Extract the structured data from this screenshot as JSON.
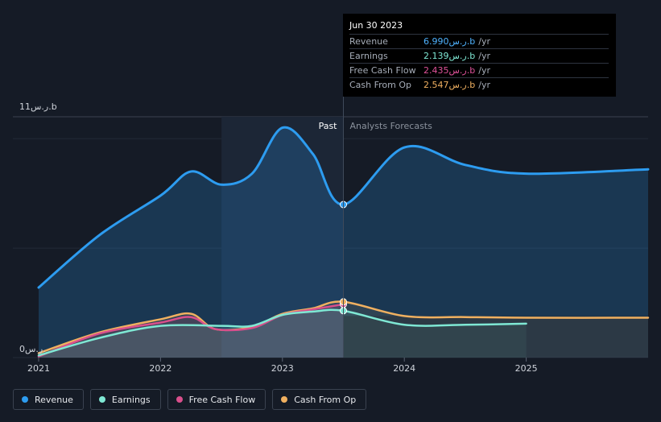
{
  "tooltip": {
    "date": "Jun 30 2023",
    "rows": [
      {
        "label": "Revenue",
        "value": "6.990ر.س.b",
        "unit": "/yr",
        "color": "#4fb3ff"
      },
      {
        "label": "Earnings",
        "value": "2.139ر.س.b",
        "unit": "/yr",
        "color": "#7fe8d4"
      },
      {
        "label": "Free Cash Flow",
        "value": "2.435ر.س.b",
        "unit": "/yr",
        "color": "#e0529a"
      },
      {
        "label": "Cash From Op",
        "value": "2.547ر.س.b",
        "unit": "/yr",
        "color": "#f0b060"
      }
    ]
  },
  "legend": [
    {
      "label": "Revenue",
      "color": "#2d9cf0"
    },
    {
      "label": "Earnings",
      "color": "#7fe8d4"
    },
    {
      "label": "Free Cash Flow",
      "color": "#d94f8c"
    },
    {
      "label": "Cash From Op",
      "color": "#f0b060"
    }
  ],
  "chart_data": {
    "type": "area",
    "y_top_label": "11ر.س.b",
    "y_bottom_label": "0ر.س.",
    "past_label": "Past",
    "forecast_label": "Analysts Forecasts",
    "ylim": [
      0,
      11
    ],
    "xlim": [
      2021,
      2026
    ],
    "x_ticks": [
      {
        "value": 2021,
        "label": "2021"
      },
      {
        "value": 2022,
        "label": "2022"
      },
      {
        "value": 2023,
        "label": "2023"
      },
      {
        "value": 2024,
        "label": "2024"
      },
      {
        "value": 2025,
        "label": "2025"
      }
    ],
    "split_x": 2023.5,
    "highlight_start_x": 2022.5,
    "series": [
      {
        "name": "Revenue",
        "color": "#2d9cf0",
        "points": [
          [
            2021.0,
            3.2
          ],
          [
            2021.5,
            5.6
          ],
          [
            2022.0,
            7.4
          ],
          [
            2022.25,
            8.5
          ],
          [
            2022.5,
            7.9
          ],
          [
            2022.75,
            8.4
          ],
          [
            2023.0,
            10.5
          ],
          [
            2023.25,
            9.3
          ],
          [
            2023.5,
            6.99
          ],
          [
            2024.0,
            9.6
          ],
          [
            2024.5,
            8.8
          ],
          [
            2025.0,
            8.4
          ],
          [
            2026.0,
            8.6
          ]
        ]
      },
      {
        "name": "Earnings",
        "color": "#7fe8d4",
        "points": [
          [
            2021.0,
            0.1
          ],
          [
            2021.5,
            0.9
          ],
          [
            2022.0,
            1.45
          ],
          [
            2022.5,
            1.45
          ],
          [
            2022.75,
            1.45
          ],
          [
            2023.0,
            1.95
          ],
          [
            2023.25,
            2.1
          ],
          [
            2023.5,
            2.139
          ],
          [
            2024.0,
            1.5
          ],
          [
            2024.5,
            1.5
          ],
          [
            2025.0,
            1.55
          ]
        ]
      },
      {
        "name": "Free Cash Flow",
        "color": "#d94f8c",
        "points": [
          [
            2021.0,
            0.05
          ],
          [
            2021.5,
            1.1
          ],
          [
            2022.0,
            1.6
          ],
          [
            2022.25,
            1.85
          ],
          [
            2022.45,
            1.3
          ],
          [
            2022.75,
            1.35
          ],
          [
            2023.0,
            1.95
          ],
          [
            2023.25,
            2.2
          ],
          [
            2023.5,
            2.435
          ]
        ]
      },
      {
        "name": "Cash From Op",
        "color": "#f0b060",
        "points": [
          [
            2021.0,
            0.2
          ],
          [
            2021.5,
            1.15
          ],
          [
            2022.0,
            1.75
          ],
          [
            2022.25,
            2.0
          ],
          [
            2022.45,
            1.3
          ],
          [
            2022.75,
            1.4
          ],
          [
            2023.0,
            2.0
          ],
          [
            2023.25,
            2.25
          ],
          [
            2023.5,
            2.547
          ],
          [
            2024.0,
            1.9
          ],
          [
            2024.5,
            1.85
          ],
          [
            2025.0,
            1.82
          ],
          [
            2026.0,
            1.82
          ]
        ]
      }
    ]
  }
}
